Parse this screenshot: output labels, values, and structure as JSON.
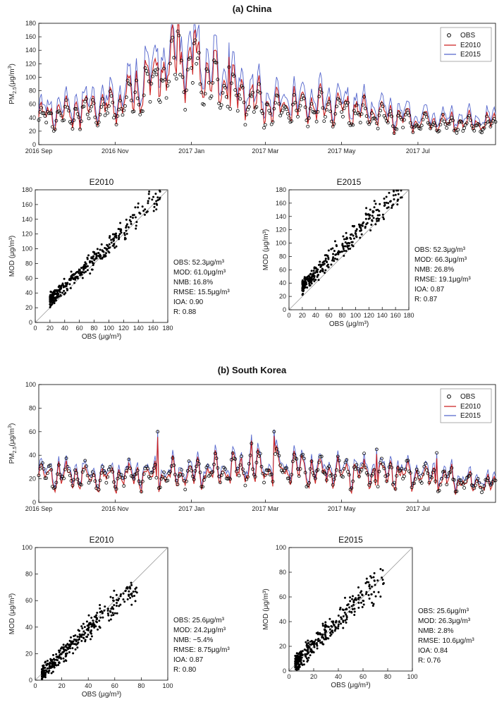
{
  "chart_data": [
    {
      "id": "china-ts",
      "type": "line",
      "title": "(a) China",
      "ylabel_main": "PM",
      "ylabel_sub": "2.5",
      "ylabel_unit": "(μg/m",
      "ylabel_sup": "3",
      "ylabel_close": ")",
      "ylim": [
        0,
        180
      ],
      "yticks": [
        0,
        20,
        40,
        60,
        80,
        100,
        120,
        140,
        160,
        180
      ],
      "xlim": [
        0,
        365
      ],
      "xticks": [
        {
          "label": "2016 Sep",
          "day": 0
        },
        {
          "label": "2016 Nov",
          "day": 61
        },
        {
          "label": "2017 Jan",
          "day": 122
        },
        {
          "label": "2017 Mar",
          "day": 181
        },
        {
          "label": "2017 May",
          "day": 242
        },
        {
          "label": "2017 Jul",
          "day": 303
        }
      ],
      "legend": [
        "OBS",
        "E2010",
        "E2015"
      ],
      "legend_position": "top-right",
      "series_envelope": {
        "obs_base": [
          [
            0,
            40
          ],
          [
            30,
            45
          ],
          [
            60,
            55
          ],
          [
            90,
            85
          ],
          [
            110,
            110
          ],
          [
            125,
            105
          ],
          [
            150,
            75
          ],
          [
            180,
            55
          ],
          [
            210,
            52
          ],
          [
            240,
            50
          ],
          [
            270,
            40
          ],
          [
            300,
            32
          ],
          [
            330,
            30
          ],
          [
            365,
            28
          ]
        ],
        "obs_peaks": [
          [
            111,
            168
          ],
          [
            112,
            162
          ],
          [
            124,
            150
          ],
          [
            125,
            155
          ],
          [
            95,
            112
          ],
          [
            140,
            125
          ],
          [
            152,
            115
          ]
        ],
        "e2010_scale": 1.12,
        "e2015_scale": 1.28
      },
      "colors": {
        "obs": "#000000",
        "e2010": "#cc2222",
        "e2015": "#5566cc"
      }
    },
    {
      "id": "china-e2010",
      "type": "scatter",
      "title": "E2010",
      "xlabel": "OBS (μg/m³)",
      "ylabel": "MOD (μg/m³)",
      "xlim": [
        0,
        180
      ],
      "ylim": [
        0,
        180
      ],
      "ticks": [
        0,
        20,
        40,
        60,
        80,
        100,
        120,
        140,
        160,
        180
      ],
      "stats": {
        "obs": "OBS: 52.3μg/m³",
        "mod": "MOD: 61.0μg/m³",
        "nmb": "NMB: 16.8%",
        "rmse": "RMSE: 15.5μg/m³",
        "ioa": "IOA: 0.90",
        "r": "R: 0.88"
      },
      "cloud": {
        "xmin": 20,
        "xmax": 170,
        "slope": 0.95,
        "intercept": 11,
        "spread": 12
      }
    },
    {
      "id": "china-e2015",
      "type": "scatter",
      "title": "E2015",
      "xlabel": "OBS (μg/m³)",
      "ylabel": "MOD (μg/m³)",
      "xlim": [
        0,
        180
      ],
      "ylim": [
        0,
        180
      ],
      "ticks": [
        0,
        20,
        40,
        60,
        80,
        100,
        120,
        140,
        160,
        180
      ],
      "stats": {
        "obs": "OBS: 52.3μg/m³",
        "mod": "MOD: 66.3μg/m³",
        "nmb": "NMB: 26.8%",
        "rmse": "RMSE: 19.1μg/m³",
        "ioa": "IOA: 0.87",
        "r": "R: 0.87"
      },
      "cloud": {
        "xmin": 20,
        "xmax": 170,
        "slope": 1.0,
        "intercept": 14,
        "spread": 15
      }
    },
    {
      "id": "korea-ts",
      "type": "line",
      "title": "(b) South Korea",
      "ylabel_main": "PM",
      "ylabel_sub": "2.5",
      "ylabel_unit": "(μg/m",
      "ylabel_sup": "3",
      "ylabel_close": ")",
      "ylim": [
        0,
        100
      ],
      "yticks": [
        0,
        20,
        40,
        60,
        80,
        100
      ],
      "xlim": [
        0,
        365
      ],
      "xticks": [
        {
          "label": "2016 Sep",
          "day": 0
        },
        {
          "label": "2016 Nov",
          "day": 61
        },
        {
          "label": "2017 Jan",
          "day": 122
        },
        {
          "label": "2017 Mar",
          "day": 181
        },
        {
          "label": "2017 May",
          "day": 242
        },
        {
          "label": "2017 Jul",
          "day": 303
        }
      ],
      "legend": [
        "OBS",
        "E2010",
        "E2015"
      ],
      "legend_position": "top-right",
      "series_envelope": {
        "obs_base": [
          [
            0,
            25
          ],
          [
            60,
            22
          ],
          [
            120,
            24
          ],
          [
            180,
            30
          ],
          [
            240,
            26
          ],
          [
            300,
            24
          ],
          [
            365,
            14
          ]
        ],
        "obs_peaks": [
          [
            95,
            60
          ],
          [
            170,
            50
          ],
          [
            188,
            60
          ],
          [
            270,
            45
          ],
          [
            318,
            42
          ]
        ],
        "e2010_scale": 0.98,
        "e2015_scale": 1.02
      },
      "colors": {
        "obs": "#000000",
        "e2010": "#cc2222",
        "e2015": "#5566cc"
      }
    },
    {
      "id": "korea-e2010",
      "type": "scatter",
      "title": "E2010",
      "xlabel": "OBS (μg/m³)",
      "ylabel": "MOD (μg/m³)",
      "xlim": [
        0,
        100
      ],
      "ylim": [
        0,
        100
      ],
      "ticks": [
        0,
        20,
        40,
        60,
        80,
        100
      ],
      "stats": {
        "obs": "OBS: 25.6μg/m³",
        "mod": "MOD: 24.2μg/m³",
        "nmb": "NMB: −5.4%",
        "rmse": "RMSE: 8.75μg/m³",
        "ioa": "IOA: 0.87",
        "r": "R: 0.80"
      },
      "cloud": {
        "xmin": 5,
        "xmax": 78,
        "slope": 0.92,
        "intercept": 1,
        "spread": 8
      }
    },
    {
      "id": "korea-e2015",
      "type": "scatter",
      "title": "E2015",
      "xlabel": "OBS (μg/m³)",
      "ylabel": "MOD (μg/m³)",
      "xlim": [
        0,
        100
      ],
      "ylim": [
        0,
        100
      ],
      "ticks": [
        0,
        20,
        40,
        60,
        80,
        100
      ],
      "stats": {
        "obs": "OBS: 25.6μg/m³",
        "mod": "MOD: 26.3μg/m³",
        "nmb": "NMB: 2.8%",
        "rmse": "RMSE: 10.6μg/m³",
        "ioa": "IOA: 0.84",
        "r": "R: 0.76"
      },
      "cloud": {
        "xmin": 5,
        "xmax": 78,
        "slope": 1.0,
        "intercept": 1,
        "spread": 10
      }
    }
  ]
}
